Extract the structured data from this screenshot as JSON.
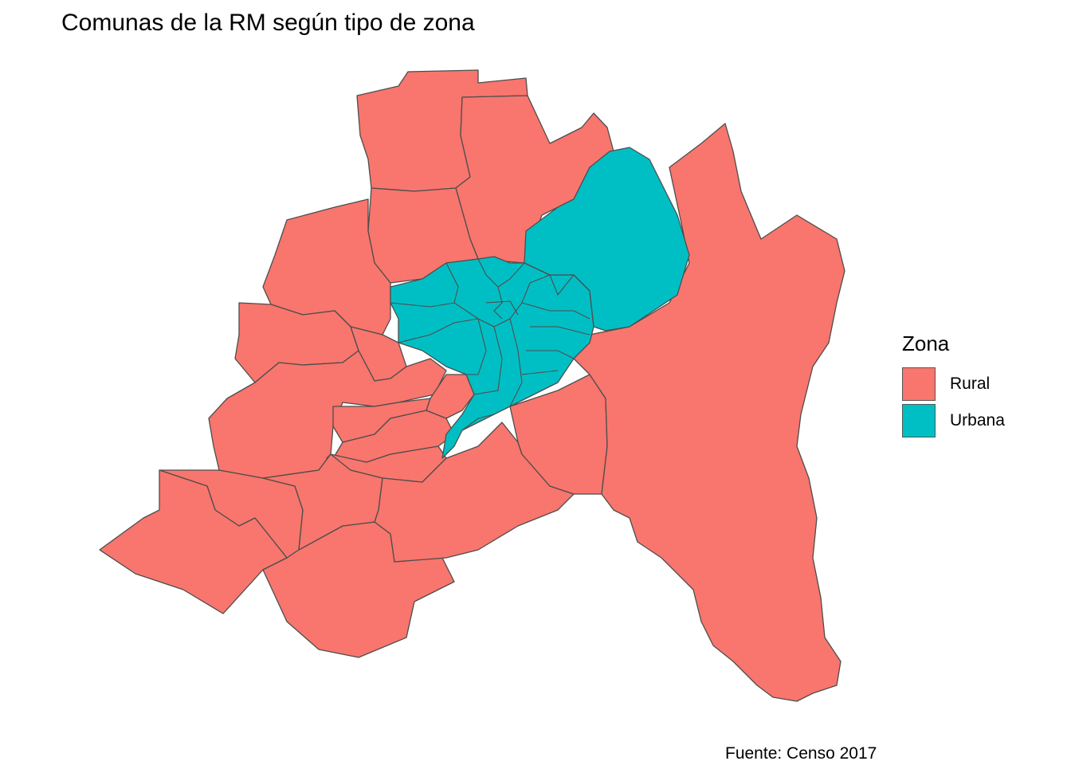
{
  "title": "Comunas de la RM según tipo de zona",
  "caption": "Fuente: Censo 2017",
  "legend": {
    "title": "Zona",
    "items": [
      {
        "label": "Rural",
        "color": "#F8766D"
      },
      {
        "label": "Urbana",
        "color": "#00BFC4"
      }
    ]
  },
  "colors": {
    "rural": "#F8766D",
    "urbana": "#00BFC4",
    "border": "#4d4d4d"
  }
}
